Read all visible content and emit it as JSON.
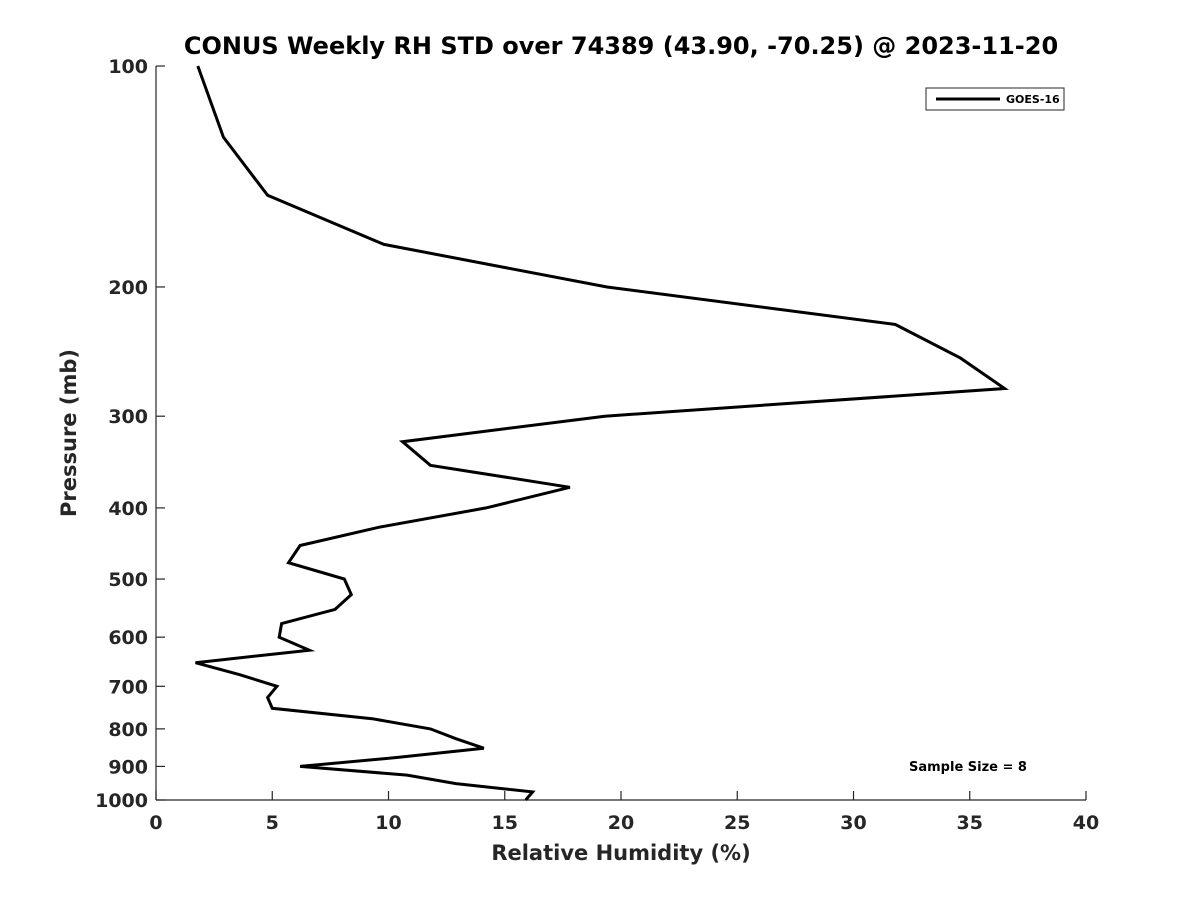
{
  "chart_data": {
    "type": "line",
    "title": "CONUS Weekly RH STD over 74389 (43.90, -70.25) @ 2023-11-20",
    "xlabel": "Relative Humidity (%)",
    "ylabel": "Pressure (mb)",
    "xlim": [
      0,
      40
    ],
    "ylim": [
      100,
      1000
    ],
    "y_scale": "log",
    "y_reversed": true,
    "x_ticks": [
      0,
      5,
      10,
      15,
      20,
      25,
      30,
      35,
      40
    ],
    "y_ticks": [
      100,
      200,
      300,
      400,
      500,
      600,
      700,
      800,
      900,
      1000
    ],
    "grid": false,
    "legend_position": "top-right",
    "annotation": "Sample Size = 8",
    "series": [
      {
        "name": "GOES-16",
        "color": "#000000",
        "points": [
          {
            "p": 100,
            "rh": 1.8
          },
          {
            "p": 125,
            "rh": 2.9
          },
          {
            "p": 150,
            "rh": 4.8
          },
          {
            "p": 175,
            "rh": 9.8
          },
          {
            "p": 200,
            "rh": 19.4
          },
          {
            "p": 225,
            "rh": 31.8
          },
          {
            "p": 250,
            "rh": 34.6
          },
          {
            "p": 275,
            "rh": 36.5
          },
          {
            "p": 300,
            "rh": 19.3
          },
          {
            "p": 325,
            "rh": 10.6
          },
          {
            "p": 350,
            "rh": 11.8
          },
          {
            "p": 375,
            "rh": 17.8
          },
          {
            "p": 400,
            "rh": 14.2
          },
          {
            "p": 425,
            "rh": 9.6
          },
          {
            "p": 450,
            "rh": 6.2
          },
          {
            "p": 475,
            "rh": 5.7
          },
          {
            "p": 500,
            "rh": 8.1
          },
          {
            "p": 525,
            "rh": 8.4
          },
          {
            "p": 550,
            "rh": 7.7
          },
          {
            "p": 575,
            "rh": 5.4
          },
          {
            "p": 600,
            "rh": 5.3
          },
          {
            "p": 625,
            "rh": 6.6
          },
          {
            "p": 650,
            "rh": 1.7
          },
          {
            "p": 675,
            "rh": 3.6
          },
          {
            "p": 700,
            "rh": 5.2
          },
          {
            "p": 725,
            "rh": 4.8
          },
          {
            "p": 750,
            "rh": 5.0
          },
          {
            "p": 775,
            "rh": 9.3
          },
          {
            "p": 800,
            "rh": 11.8
          },
          {
            "p": 825,
            "rh": 12.9
          },
          {
            "p": 850,
            "rh": 14.1
          },
          {
            "p": 875,
            "rh": 10.4
          },
          {
            "p": 900,
            "rh": 6.2
          },
          {
            "p": 925,
            "rh": 10.8
          },
          {
            "p": 950,
            "rh": 12.9
          },
          {
            "p": 975,
            "rh": 16.2
          },
          {
            "p": 1000,
            "rh": 15.9
          }
        ]
      }
    ]
  }
}
